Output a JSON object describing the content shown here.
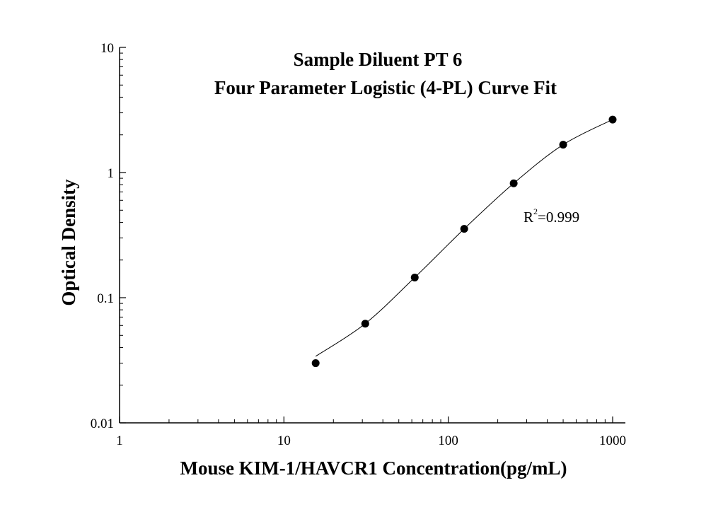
{
  "chart_data": {
    "type": "scatter",
    "title": "Sample Diluent PT 6",
    "subtitle": "Four Parameter Logistic (4-PL) Curve Fit",
    "xlabel": "Mouse KIM-1/HAVCR1 Concentration(pg/mL)",
    "ylabel": "Optical Density",
    "xscale": "log",
    "yscale": "log",
    "xlim": [
      1,
      1000
    ],
    "ylim": [
      0.01,
      10
    ],
    "x_ticks": [
      {
        "value": 1,
        "label": "1"
      },
      {
        "value": 10,
        "label": "10"
      },
      {
        "value": 100,
        "label": "100"
      },
      {
        "value": 1000,
        "label": "1000"
      }
    ],
    "y_ticks": [
      {
        "value": 0.01,
        "label": "0.01"
      },
      {
        "value": 0.1,
        "label": "0.1"
      },
      {
        "value": 1,
        "label": "1"
      },
      {
        "value": 10,
        "label": "10"
      }
    ],
    "grid": false,
    "series": [
      {
        "x": [
          15.6,
          31.25,
          62.5,
          125,
          250,
          500,
          1000
        ],
        "y": [
          0.03,
          0.062,
          0.145,
          0.355,
          0.82,
          1.67,
          2.65
        ]
      }
    ],
    "fit_curve": {
      "model": "4-PL",
      "x_range": [
        15.6,
        1000
      ]
    },
    "annotation": {
      "base": "R",
      "superscript": "2",
      "value": "=0.999"
    },
    "colors": {
      "points": "#000000",
      "line": "#000000",
      "axes": "#000000"
    }
  }
}
